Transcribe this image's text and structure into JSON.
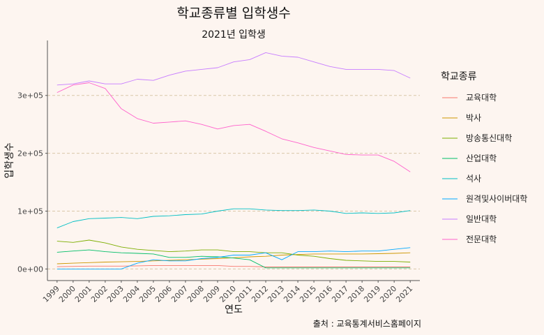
{
  "chart_data": {
    "type": "line",
    "title": "학교종류별 입학생수",
    "subtitle": "2021년 입학생",
    "xlabel": "연도",
    "ylabel": "입학생수",
    "caption": "출처 : 교육통계서비스홈페이지",
    "legend_title": "학교종류",
    "legend_position": "right",
    "grid": "horizontal dashed",
    "x": [
      1999,
      2000,
      2001,
      2002,
      2003,
      2004,
      2005,
      2006,
      2007,
      2008,
      2009,
      2010,
      2011,
      2012,
      2013,
      2014,
      2015,
      2016,
      2017,
      2018,
      2019,
      2020,
      2021
    ],
    "ylim": [
      -20000,
      395000
    ],
    "yticks": [
      0,
      100000,
      200000,
      300000
    ],
    "ytick_labels": [
      "0e+00",
      "1e+05",
      "2e+05",
      "3e+05"
    ],
    "series": [
      {
        "name": "교육대학",
        "color": "#F8766D",
        "values": [
          4000,
          4500,
          5000,
          5000,
          5000,
          5500,
          6000,
          6000,
          6000,
          6000,
          6000,
          4500,
          4500,
          3500,
          3500,
          3500,
          3500,
          3500,
          3500,
          3500,
          3500,
          3500,
          3500
        ]
      },
      {
        "name": "박사",
        "color": "#CD9600",
        "values": [
          9000,
          10000,
          11000,
          12000,
          12500,
          13000,
          14000,
          15000,
          16000,
          17000,
          18000,
          19500,
          21000,
          22000,
          24000,
          25000,
          26000,
          26000,
          26000,
          26000,
          26500,
          27000,
          28000
        ]
      },
      {
        "name": "방송통신대학",
        "color": "#7CAE00",
        "values": [
          48000,
          46000,
          50000,
          45000,
          38000,
          34000,
          32000,
          30000,
          31000,
          33000,
          33000,
          30000,
          30000,
          28000,
          28000,
          24000,
          22000,
          18000,
          15000,
          14000,
          13000,
          13000,
          12000
        ]
      },
      {
        "name": "산업대학",
        "color": "#00BE67",
        "values": [
          29000,
          31000,
          33000,
          30000,
          28000,
          27000,
          26000,
          20000,
          20000,
          22000,
          21000,
          19000,
          16000,
          2000,
          2000,
          2000,
          2000,
          2000,
          2000,
          2000,
          2000,
          2000,
          2000
        ]
      },
      {
        "name": "석사",
        "color": "#00BFC4",
        "values": [
          71000,
          82000,
          87000,
          88000,
          89000,
          87000,
          91000,
          92000,
          94000,
          95000,
          100000,
          104000,
          104000,
          102000,
          101000,
          101000,
          102000,
          100000,
          96000,
          97000,
          96000,
          97000,
          101000
        ]
      },
      {
        "name": "원격및사이버대학",
        "color": "#00A9FF",
        "values": [
          0,
          0,
          0,
          0,
          0,
          10000,
          16000,
          14000,
          14000,
          18000,
          20000,
          24000,
          24000,
          28000,
          16000,
          30000,
          30000,
          31000,
          30000,
          31000,
          31000,
          34000,
          37000
        ]
      },
      {
        "name": "일반대학",
        "color": "#C77CFF",
        "values": [
          318000,
          320000,
          325000,
          320000,
          320000,
          328000,
          326000,
          335000,
          342000,
          345000,
          348000,
          358000,
          362000,
          374000,
          368000,
          366000,
          358000,
          350000,
          345000,
          345000,
          345000,
          343000,
          330000
        ]
      },
      {
        "name": "전문대학",
        "color": "#FF61CC",
        "values": [
          305000,
          318000,
          322000,
          312000,
          277000,
          260000,
          252000,
          254000,
          256000,
          250000,
          242000,
          248000,
          250000,
          238000,
          225000,
          218000,
          210000,
          204000,
          198000,
          197000,
          197000,
          186000,
          168000
        ]
      }
    ]
  }
}
